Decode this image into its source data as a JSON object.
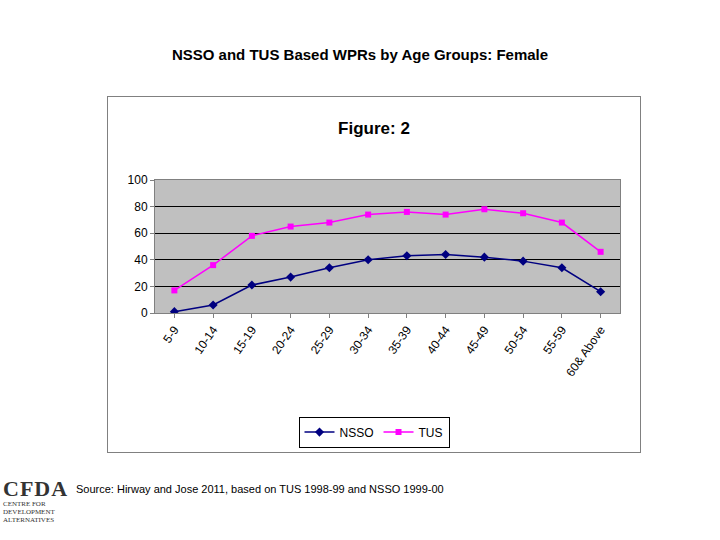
{
  "heading": "NSSO and TUS Based WPRs by Age Groups: Female",
  "source": "Source: Hirway and Jose 2011, based on TUS 1998-99 and NSSO 1999-00",
  "logo": {
    "name": "CFDA",
    "lines": [
      "CENTRE FOR",
      "DEVELOPMENT",
      "ALTERNATIVES"
    ]
  },
  "chart_data": {
    "type": "line",
    "title": "Figure: 2",
    "categories": [
      "5-9",
      "10-14",
      "15-19",
      "20-24",
      "25-29",
      "30-34",
      "35-39",
      "40-44",
      "45-49",
      "50-54",
      "55-59",
      "60& Above"
    ],
    "series": [
      {
        "name": "NSSO",
        "color": "#000080",
        "marker": "diamond",
        "line_style": "solid",
        "values": [
          1,
          6,
          21,
          27,
          34,
          40,
          43,
          44,
          42,
          39,
          34,
          16
        ]
      },
      {
        "name": "TUS",
        "color": "#ff00ff",
        "marker": "square",
        "line_style": "solid",
        "values": [
          17,
          36,
          58,
          65,
          68,
          74,
          76,
          74,
          78,
          75,
          68,
          46
        ]
      }
    ],
    "ylim": [
      0,
      100
    ],
    "yticks": [
      0,
      20,
      40,
      60,
      80,
      100
    ],
    "grid": true,
    "legend": "bottom"
  }
}
